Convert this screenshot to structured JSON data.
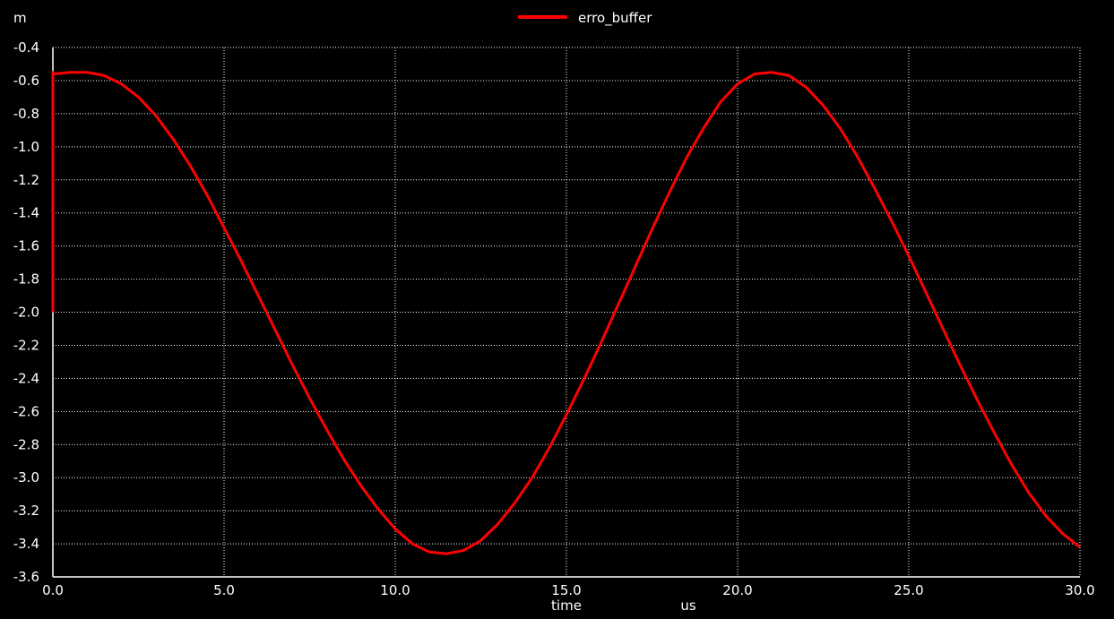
{
  "chart_data": {
    "type": "line",
    "title": "",
    "y_unit": "m",
    "x_label": "time",
    "x_unit": "us",
    "xlim": [
      0.0,
      30.0
    ],
    "ylim": [
      -3.6,
      -0.4
    ],
    "x_ticks": [
      "0.0",
      "5.0",
      "10.0",
      "15.0",
      "20.0",
      "25.0",
      "30.0"
    ],
    "x_tick_values": [
      0,
      5,
      10,
      15,
      20,
      25,
      30
    ],
    "y_ticks": [
      "-0.4",
      "-0.6",
      "-0.8",
      "-1.0",
      "-1.2",
      "-1.4",
      "-1.6",
      "-1.8",
      "-2.0",
      "-2.2",
      "-2.4",
      "-2.6",
      "-2.8",
      "-3.0",
      "-3.2",
      "-3.4",
      "-3.6"
    ],
    "y_tick_values": [
      -0.4,
      -0.6,
      -0.8,
      -1.0,
      -1.2,
      -1.4,
      -1.6,
      -1.8,
      -2.0,
      -2.2,
      -2.4,
      -2.6,
      -2.8,
      -3.0,
      -3.2,
      -3.4,
      -3.6
    ],
    "grid": true,
    "legend_position": "top-center",
    "background_color": "#000000",
    "axis_color": "#ffffff",
    "series": [
      {
        "name": "erro_buffer",
        "color": "#ff0000",
        "x": [
          0.0,
          0.0,
          0.05,
          0.5,
          1.0,
          1.5,
          2.0,
          2.5,
          3.0,
          3.5,
          4.0,
          4.5,
          5.0,
          5.5,
          6.0,
          6.5,
          7.0,
          7.5,
          8.0,
          8.5,
          9.0,
          9.5,
          10.0,
          10.5,
          11.0,
          11.5,
          12.0,
          12.5,
          13.0,
          13.5,
          14.0,
          14.5,
          15.0,
          15.5,
          16.0,
          16.5,
          17.0,
          17.5,
          18.0,
          18.5,
          19.0,
          19.5,
          20.0,
          20.5,
          21.0,
          21.5,
          22.0,
          22.5,
          23.0,
          23.5,
          24.0,
          24.5,
          25.0,
          25.5,
          26.0,
          26.5,
          27.0,
          27.5,
          28.0,
          28.5,
          29.0,
          29.5,
          30.0
        ],
        "y": [
          -2.0,
          -0.55,
          -0.56,
          -0.55,
          -0.55,
          -0.57,
          -0.62,
          -0.7,
          -0.81,
          -0.95,
          -1.11,
          -1.29,
          -1.49,
          -1.69,
          -1.9,
          -2.11,
          -2.32,
          -2.52,
          -2.71,
          -2.89,
          -3.05,
          -3.19,
          -3.31,
          -3.4,
          -3.45,
          -3.46,
          -3.44,
          -3.38,
          -3.28,
          -3.15,
          -3.0,
          -2.82,
          -2.62,
          -2.41,
          -2.19,
          -1.96,
          -1.73,
          -1.5,
          -1.28,
          -1.07,
          -0.89,
          -0.73,
          -0.62,
          -0.56,
          -0.55,
          -0.57,
          -0.64,
          -0.75,
          -0.89,
          -1.06,
          -1.25,
          -1.45,
          -1.66,
          -1.88,
          -2.1,
          -2.32,
          -2.53,
          -2.73,
          -2.92,
          -3.09,
          -3.23,
          -3.34,
          -3.42
        ]
      }
    ]
  }
}
